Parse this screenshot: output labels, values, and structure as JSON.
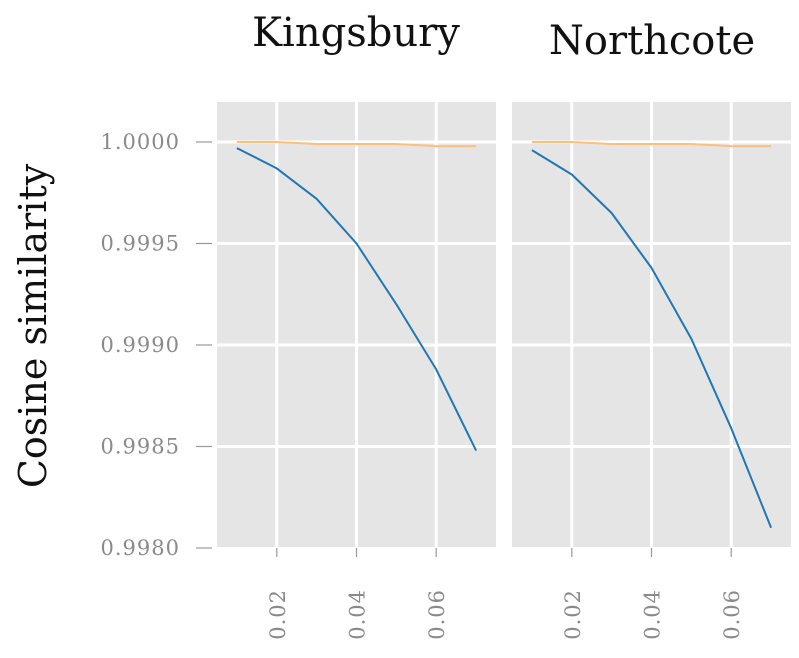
{
  "chart_data": {
    "type": "line",
    "ylabel": "Cosine similarity",
    "ylim": [
      0.998,
      1.0002
    ],
    "yticks": [
      "0.9980",
      "0.9985",
      "0.9990",
      "0.9995",
      "1.0000"
    ],
    "ytick_values": [
      0.998,
      0.9985,
      0.999,
      0.9995,
      1.0
    ],
    "xlim": [
      0.005,
      0.075
    ],
    "xticks": [
      "0.02",
      "0.04",
      "0.06"
    ],
    "xtick_values": [
      0.02,
      0.04,
      0.06
    ],
    "grid": true,
    "series_colors": [
      "#1f77b4",
      "#ffbf79"
    ],
    "panels": [
      {
        "title": "Kingsbury",
        "series": [
          {
            "x": [
              0.01,
              0.02,
              0.03,
              0.04,
              0.05,
              0.06,
              0.07
            ],
            "values": [
              0.99997,
              0.99987,
              0.99972,
              0.9995,
              0.9992,
              0.99888,
              0.99848
            ]
          },
          {
            "x": [
              0.01,
              0.02,
              0.03,
              0.04,
              0.05,
              0.06,
              0.07
            ],
            "values": [
              1.0,
              1.0,
              0.99999,
              0.99999,
              0.99999,
              0.99998,
              0.99998
            ]
          }
        ]
      },
      {
        "title": "Northcote",
        "series": [
          {
            "x": [
              0.01,
              0.02,
              0.03,
              0.04,
              0.05,
              0.06,
              0.07
            ],
            "values": [
              0.99996,
              0.99984,
              0.99965,
              0.99938,
              0.99903,
              0.99859,
              0.9981
            ]
          },
          {
            "x": [
              0.01,
              0.02,
              0.03,
              0.04,
              0.05,
              0.06,
              0.07
            ],
            "values": [
              1.0,
              1.0,
              0.99999,
              0.99999,
              0.99999,
              0.99998,
              0.99998
            ]
          }
        ]
      }
    ]
  }
}
